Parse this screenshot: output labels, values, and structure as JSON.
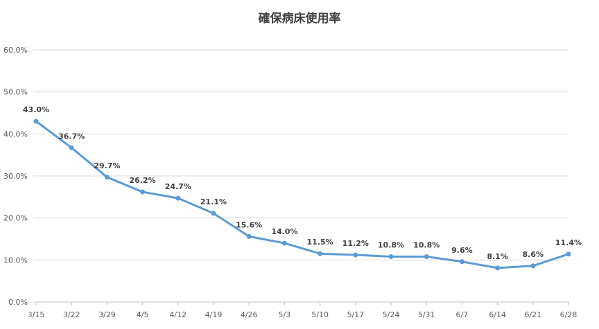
{
  "chart_data": {
    "type": "line",
    "title": "確保病床使用率",
    "xlabel": "",
    "ylabel": "",
    "categories": [
      "3/15",
      "3/22",
      "3/29",
      "4/5",
      "4/12",
      "4/19",
      "4/26",
      "5/3",
      "5/10",
      "5/17",
      "5/24",
      "5/31",
      "6/7",
      "6/14",
      "6/21",
      "6/28"
    ],
    "series": [
      {
        "values": [
          43.0,
          36.7,
          29.7,
          26.2,
          24.7,
          21.1,
          15.6,
          14.0,
          11.5,
          11.2,
          10.8,
          10.8,
          9.6,
          8.1,
          8.6,
          11.4
        ],
        "labels": [
          "43.0%",
          "36.7%",
          "29.7%",
          "26.2%",
          "24.7%",
          "21.1%",
          "15.6%",
          "14.0%",
          "11.5%",
          "11.2%",
          "10.8%",
          "10.8%",
          "9.6%",
          "8.1%",
          "8.6%",
          "11.4%"
        ],
        "color": "#5b9bd5"
      }
    ],
    "ylim": [
      0,
      60
    ],
    "yticks": [
      0,
      10,
      20,
      30,
      40,
      50,
      60
    ],
    "ytick_labels": [
      "0.0%",
      "10.0%",
      "20.0%",
      "30.0%",
      "40.0%",
      "50.0%",
      "60.0%"
    ],
    "grid": true,
    "legend": "none"
  }
}
